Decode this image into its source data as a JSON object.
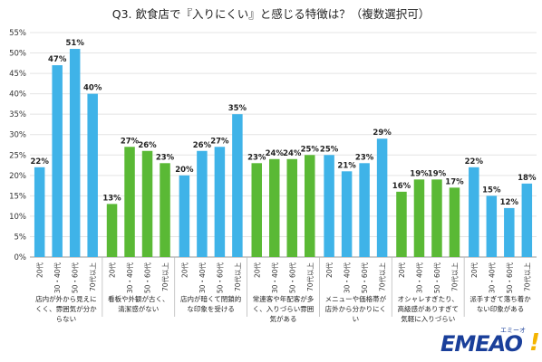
{
  "chart_data": {
    "type": "bar",
    "title": "Q3. 飲食店で『入りにくい』と感じる特徴は？（複数選択可）",
    "ylim": [
      0,
      55
    ],
    "y_ticks": [
      "0%",
      "5%",
      "10%",
      "15%",
      "20%",
      "25%",
      "30%",
      "35%",
      "40%",
      "45%",
      "50%",
      "55%"
    ],
    "grid": true,
    "categories": [
      "20代",
      "30・40代",
      "50・60代",
      "70代以上"
    ],
    "groups": [
      {
        "label": "店内が外から見えにくく、雰囲気が分からない",
        "values": [
          22,
          47,
          51,
          40
        ],
        "color": "#3fb3e8"
      },
      {
        "label": "看板や外観が古く、清潔感がない",
        "values": [
          13,
          27,
          26,
          23
        ],
        "color": "#5ab935"
      },
      {
        "label": "店内が暗くて閉鎖的な印象を受ける",
        "values": [
          20,
          26,
          27,
          35
        ],
        "color": "#3fb3e8"
      },
      {
        "label": "常連客や年配客が多く、入りづらい雰囲気がある",
        "values": [
          23,
          24,
          24,
          25
        ],
        "color": "#5ab935"
      },
      {
        "label": "メニューや価格帯が店外から分かりにくい",
        "values": [
          25,
          21,
          23,
          29
        ],
        "color": "#3fb3e8"
      },
      {
        "label": "オシャレすぎたり、高級感がありすぎて気軽に入りづらい",
        "values": [
          16,
          19,
          19,
          17
        ],
        "color": "#5ab935"
      },
      {
        "label": "派手すぎて落ち着かない印象がある",
        "values": [
          22,
          15,
          12,
          18
        ],
        "color": "#3fb3e8"
      }
    ],
    "value_suffix": "%"
  },
  "logo": {
    "text": "EMEAO",
    "reading": "エミーオ",
    "mark": "!"
  }
}
